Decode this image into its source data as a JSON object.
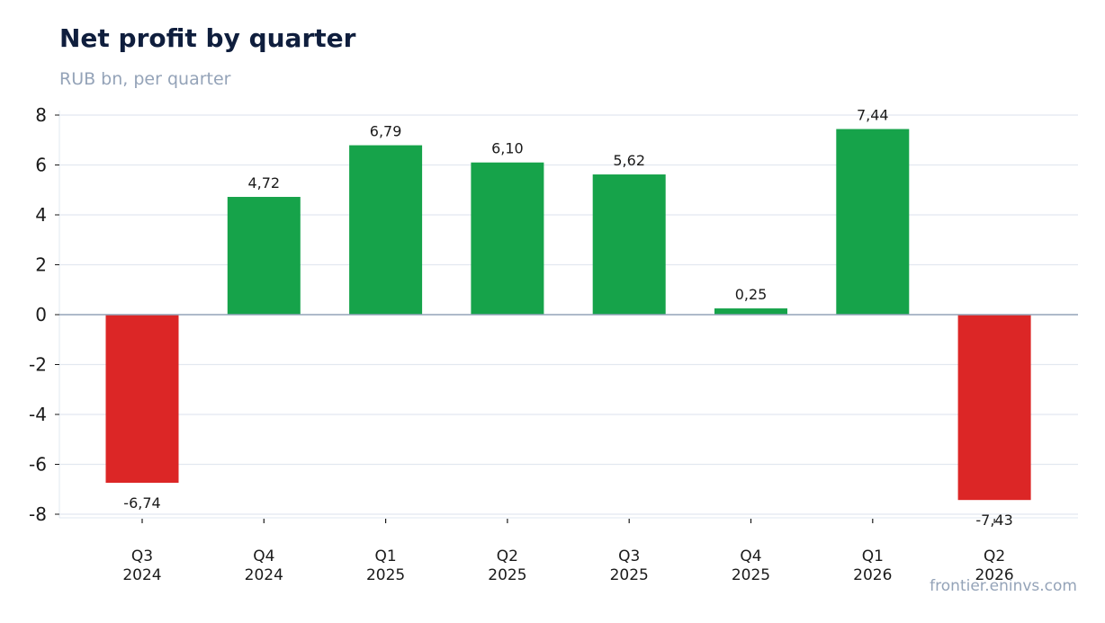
{
  "chart_data": {
    "type": "bar",
    "title": "Net profit by quarter",
    "subtitle": "RUB bn, per quarter",
    "categories": [
      [
        "Q3",
        "2024"
      ],
      [
        "Q4",
        "2024"
      ],
      [
        "Q1",
        "2025"
      ],
      [
        "Q2",
        "2025"
      ],
      [
        "Q3",
        "2025"
      ],
      [
        "Q4",
        "2025"
      ],
      [
        "Q1",
        "2026"
      ],
      [
        "Q2",
        "2026"
      ]
    ],
    "values": [
      -6.74,
      4.72,
      6.79,
      6.1,
      5.62,
      0.25,
      7.44,
      -7.43
    ],
    "value_labels": [
      "-6,74",
      "4,72",
      "6,79",
      "6,10",
      "5,62",
      "0,25",
      "7,44",
      "-7,43"
    ],
    "ylim": [
      -8.2,
      8.2
    ],
    "yticks": [
      8,
      6,
      4,
      2,
      0,
      -2,
      -4,
      -6,
      -8
    ],
    "grid": true,
    "colors": {
      "positive": "#16a34a",
      "negative": "#dc2626",
      "grid": "#e2e8f0",
      "baseline": "#94a3b8"
    }
  },
  "source": "frontier.eninvs.com"
}
